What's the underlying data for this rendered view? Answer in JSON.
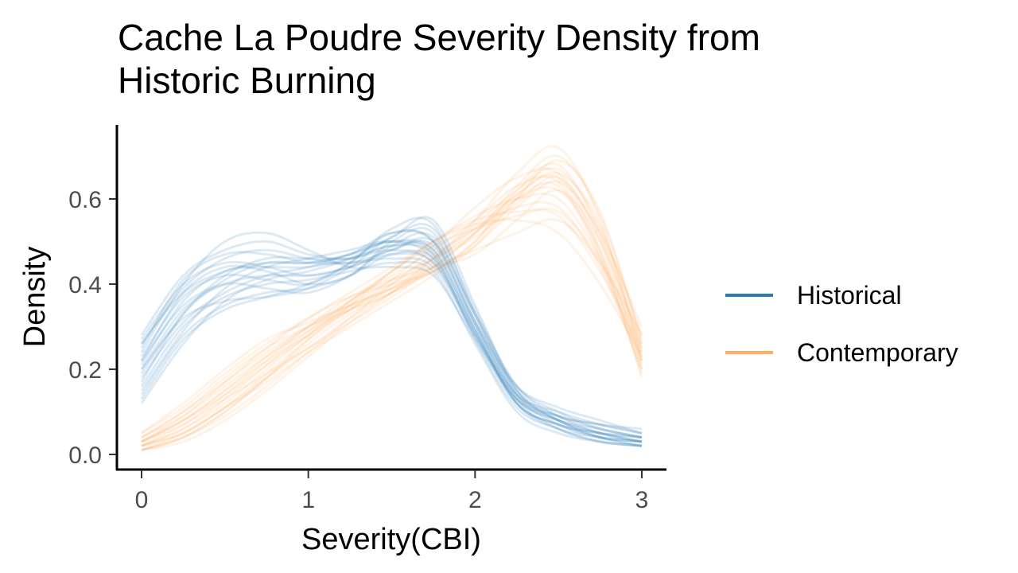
{
  "chart_data": {
    "type": "line",
    "title": "Cache La Poudre Severity Density from\n Historic Burning",
    "xlabel": "Severity(CBI)",
    "ylabel": "Density",
    "xlim": [
      0,
      3
    ],
    "ylim": [
      0,
      0.7
    ],
    "xticks": [
      0,
      1,
      2,
      3
    ],
    "yticks": [
      0.0,
      0.2,
      0.4,
      0.6
    ],
    "ytick_labels": [
      "0.0",
      "0.2",
      "0.4",
      "0.6"
    ],
    "grid": false,
    "legend": "right",
    "x": [
      0,
      0.25,
      0.5,
      0.75,
      1,
      1.25,
      1.5,
      1.75,
      2,
      2.25,
      2.5,
      2.75,
      3
    ],
    "series": [
      {
        "name": "Historical",
        "color": "#2b7bba",
        "replicates": [
          [
            0.2,
            0.34,
            0.4,
            0.42,
            0.42,
            0.44,
            0.47,
            0.45,
            0.28,
            0.13,
            0.08,
            0.05,
            0.03
          ],
          [
            0.26,
            0.39,
            0.46,
            0.48,
            0.46,
            0.45,
            0.48,
            0.5,
            0.33,
            0.16,
            0.1,
            0.06,
            0.04
          ],
          [
            0.16,
            0.3,
            0.37,
            0.4,
            0.41,
            0.43,
            0.45,
            0.43,
            0.26,
            0.1,
            0.05,
            0.03,
            0.02
          ],
          [
            0.22,
            0.38,
            0.44,
            0.43,
            0.4,
            0.42,
            0.5,
            0.52,
            0.32,
            0.15,
            0.09,
            0.07,
            0.05
          ],
          [
            0.28,
            0.42,
            0.48,
            0.5,
            0.47,
            0.46,
            0.49,
            0.47,
            0.3,
            0.14,
            0.08,
            0.05,
            0.03
          ],
          [
            0.14,
            0.28,
            0.35,
            0.38,
            0.39,
            0.42,
            0.47,
            0.46,
            0.29,
            0.12,
            0.07,
            0.04,
            0.03
          ],
          [
            0.19,
            0.33,
            0.41,
            0.45,
            0.45,
            0.47,
            0.52,
            0.5,
            0.31,
            0.14,
            0.09,
            0.06,
            0.04
          ],
          [
            0.24,
            0.4,
            0.5,
            0.52,
            0.48,
            0.44,
            0.44,
            0.42,
            0.27,
            0.13,
            0.09,
            0.07,
            0.06
          ],
          [
            0.12,
            0.26,
            0.36,
            0.41,
            0.43,
            0.46,
            0.51,
            0.55,
            0.35,
            0.15,
            0.08,
            0.04,
            0.02
          ],
          [
            0.21,
            0.36,
            0.43,
            0.44,
            0.44,
            0.46,
            0.49,
            0.48,
            0.3,
            0.12,
            0.06,
            0.04,
            0.03
          ],
          [
            0.27,
            0.4,
            0.45,
            0.44,
            0.42,
            0.44,
            0.48,
            0.49,
            0.31,
            0.16,
            0.11,
            0.08,
            0.05
          ],
          [
            0.18,
            0.31,
            0.38,
            0.42,
            0.44,
            0.47,
            0.5,
            0.47,
            0.27,
            0.11,
            0.06,
            0.03,
            0.02
          ],
          [
            0.23,
            0.37,
            0.42,
            0.41,
            0.4,
            0.45,
            0.53,
            0.54,
            0.33,
            0.14,
            0.07,
            0.04,
            0.03
          ],
          [
            0.15,
            0.29,
            0.39,
            0.44,
            0.46,
            0.48,
            0.5,
            0.46,
            0.28,
            0.12,
            0.07,
            0.05,
            0.04
          ],
          [
            0.25,
            0.41,
            0.47,
            0.47,
            0.45,
            0.45,
            0.46,
            0.44,
            0.28,
            0.14,
            0.1,
            0.07,
            0.05
          ],
          [
            0.2,
            0.32,
            0.36,
            0.37,
            0.39,
            0.44,
            0.51,
            0.53,
            0.34,
            0.16,
            0.09,
            0.05,
            0.03
          ],
          [
            0.17,
            0.33,
            0.42,
            0.46,
            0.46,
            0.46,
            0.48,
            0.45,
            0.29,
            0.13,
            0.08,
            0.06,
            0.04
          ],
          [
            0.22,
            0.35,
            0.4,
            0.39,
            0.38,
            0.42,
            0.49,
            0.51,
            0.33,
            0.15,
            0.08,
            0.04,
            0.02
          ],
          [
            0.13,
            0.27,
            0.34,
            0.37,
            0.4,
            0.45,
            0.52,
            0.5,
            0.31,
            0.13,
            0.06,
            0.03,
            0.02
          ],
          [
            0.26,
            0.38,
            0.43,
            0.45,
            0.45,
            0.47,
            0.5,
            0.48,
            0.29,
            0.12,
            0.07,
            0.05,
            0.04
          ]
        ]
      },
      {
        "name": "Contemporary",
        "color": "#fdae61",
        "replicates": [
          [
            0.03,
            0.08,
            0.15,
            0.22,
            0.28,
            0.34,
            0.4,
            0.46,
            0.52,
            0.6,
            0.62,
            0.48,
            0.22
          ],
          [
            0.01,
            0.04,
            0.1,
            0.18,
            0.26,
            0.33,
            0.38,
            0.43,
            0.5,
            0.62,
            0.68,
            0.52,
            0.25
          ],
          [
            0.05,
            0.12,
            0.2,
            0.27,
            0.31,
            0.35,
            0.39,
            0.44,
            0.48,
            0.52,
            0.55,
            0.45,
            0.28
          ],
          [
            0.02,
            0.06,
            0.13,
            0.21,
            0.29,
            0.36,
            0.42,
            0.48,
            0.55,
            0.63,
            0.64,
            0.47,
            0.2
          ],
          [
            0.01,
            0.03,
            0.08,
            0.15,
            0.23,
            0.31,
            0.38,
            0.46,
            0.55,
            0.66,
            0.72,
            0.55,
            0.22
          ],
          [
            0.04,
            0.1,
            0.17,
            0.24,
            0.3,
            0.36,
            0.43,
            0.5,
            0.55,
            0.57,
            0.56,
            0.43,
            0.24
          ],
          [
            0.02,
            0.07,
            0.14,
            0.22,
            0.3,
            0.37,
            0.41,
            0.44,
            0.47,
            0.55,
            0.62,
            0.5,
            0.26
          ],
          [
            0.03,
            0.09,
            0.17,
            0.25,
            0.32,
            0.37,
            0.4,
            0.43,
            0.5,
            0.6,
            0.63,
            0.46,
            0.19
          ],
          [
            0.01,
            0.05,
            0.11,
            0.19,
            0.27,
            0.34,
            0.41,
            0.49,
            0.58,
            0.65,
            0.66,
            0.5,
            0.21
          ],
          [
            0.05,
            0.11,
            0.19,
            0.26,
            0.32,
            0.38,
            0.44,
            0.5,
            0.54,
            0.55,
            0.52,
            0.4,
            0.23
          ],
          [
            0.02,
            0.05,
            0.11,
            0.18,
            0.25,
            0.32,
            0.38,
            0.44,
            0.52,
            0.63,
            0.7,
            0.56,
            0.27
          ],
          [
            0.03,
            0.08,
            0.15,
            0.23,
            0.3,
            0.35,
            0.39,
            0.43,
            0.49,
            0.58,
            0.64,
            0.52,
            0.3
          ],
          [
            0.01,
            0.04,
            0.09,
            0.16,
            0.24,
            0.32,
            0.4,
            0.47,
            0.53,
            0.61,
            0.66,
            0.54,
            0.24
          ],
          [
            0.04,
            0.1,
            0.18,
            0.25,
            0.3,
            0.34,
            0.38,
            0.45,
            0.53,
            0.58,
            0.58,
            0.44,
            0.2
          ],
          [
            0.02,
            0.06,
            0.12,
            0.2,
            0.28,
            0.35,
            0.41,
            0.46,
            0.51,
            0.59,
            0.65,
            0.51,
            0.23
          ],
          [
            0.03,
            0.07,
            0.13,
            0.19,
            0.25,
            0.31,
            0.37,
            0.44,
            0.52,
            0.61,
            0.65,
            0.48,
            0.18
          ],
          [
            0.01,
            0.04,
            0.1,
            0.18,
            0.27,
            0.35,
            0.43,
            0.5,
            0.56,
            0.6,
            0.6,
            0.46,
            0.25
          ],
          [
            0.04,
            0.09,
            0.16,
            0.23,
            0.29,
            0.34,
            0.39,
            0.46,
            0.54,
            0.62,
            0.67,
            0.53,
            0.28
          ],
          [
            0.02,
            0.05,
            0.11,
            0.17,
            0.24,
            0.3,
            0.36,
            0.42,
            0.49,
            0.6,
            0.69,
            0.57,
            0.26
          ],
          [
            0.03,
            0.08,
            0.14,
            0.21,
            0.28,
            0.36,
            0.43,
            0.49,
            0.53,
            0.56,
            0.57,
            0.45,
            0.22
          ]
        ]
      }
    ]
  }
}
